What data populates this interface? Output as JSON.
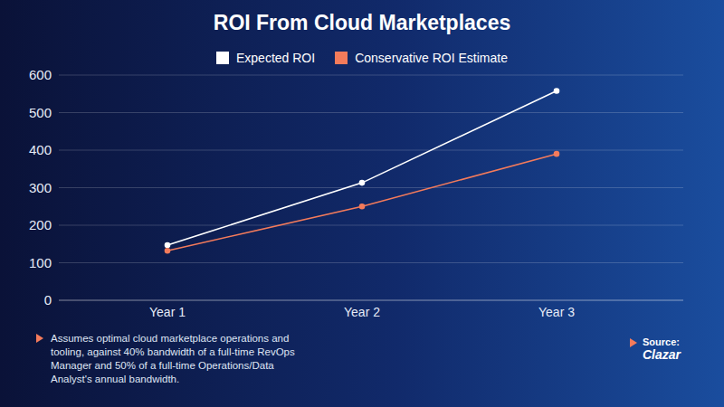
{
  "chart_data": {
    "type": "line",
    "title": "ROI From Cloud Marketplaces",
    "categories": [
      "Year 1",
      "Year 2",
      "Year 3"
    ],
    "series": [
      {
        "name": "Expected ROI",
        "color": "#ffffff",
        "values": [
          147,
          313,
          558
        ]
      },
      {
        "name": "Conservative ROI Estimate",
        "color": "#f47b5b",
        "values": [
          132,
          250,
          390
        ]
      }
    ],
    "ylim": [
      0,
      600
    ],
    "yticks": [
      0,
      100,
      200,
      300,
      400,
      500,
      600
    ],
    "grid": true,
    "legend": "top",
    "note": "Assumes optimal cloud marketplace operations and tooling, against 40% bandwidth of a full-time RevOps Manager and 50% of a full-time Operations/Data Analyst's annual bandwidth.",
    "source": {
      "label": "Source:",
      "name": "Clazar"
    }
  }
}
